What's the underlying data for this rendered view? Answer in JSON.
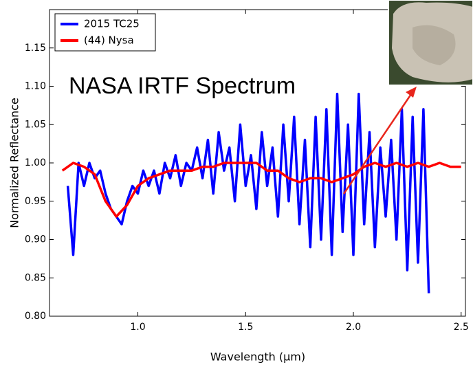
{
  "chart_data": {
    "type": "line",
    "annotation": "NASA IRTF Spectrum",
    "x_label": "Wavelength (μm)",
    "y_label": "Normalized Reflectance",
    "xlim": [
      0.59,
      2.52
    ],
    "ylim": [
      0.8,
      1.2
    ],
    "xticks": [
      {
        "value": 1,
        "label": "1.0"
      },
      1.5,
      {
        "value": 2,
        "label": "2.0"
      },
      2.5
    ],
    "yticks": [
      {
        "value": 0.8,
        "label": "0.80"
      },
      0.85,
      {
        "value": 0.9,
        "label": "0.90"
      },
      0.95,
      {
        "value": 1,
        "label": "1.00"
      },
      1.05,
      {
        "value": 1.1,
        "label": "1.10"
      },
      1.15
    ],
    "grid": false,
    "legend": "upper left",
    "series": [
      {
        "name": "2015 TC25",
        "color": "#0000ff",
        "x": [
          0.675,
          0.7,
          0.725,
          0.75,
          0.775,
          0.8,
          0.825,
          0.85,
          0.875,
          0.9,
          0.925,
          0.95,
          0.975,
          1.0,
          1.025,
          1.05,
          1.075,
          1.1,
          1.125,
          1.15,
          1.175,
          1.2,
          1.225,
          1.25,
          1.275,
          1.3,
          1.325,
          1.35,
          1.375,
          1.4,
          1.425,
          1.45,
          1.475,
          1.5,
          1.525,
          1.55,
          1.575,
          1.6,
          1.625,
          1.65,
          1.675,
          1.7,
          1.725,
          1.75,
          1.775,
          1.8,
          1.825,
          1.85,
          1.875,
          1.9,
          1.925,
          1.95,
          1.975,
          2.0,
          2.025,
          2.05,
          2.075,
          2.1,
          2.125,
          2.15,
          2.175,
          2.2,
          2.225,
          2.25,
          2.275,
          2.3,
          2.325,
          2.35
        ],
        "values": [
          0.97,
          0.88,
          1.0,
          0.97,
          1.0,
          0.98,
          0.99,
          0.96,
          0.94,
          0.93,
          0.92,
          0.95,
          0.97,
          0.96,
          0.99,
          0.97,
          0.99,
          0.96,
          1.0,
          0.98,
          1.01,
          0.97,
          1.0,
          0.99,
          1.02,
          0.98,
          1.03,
          0.96,
          1.04,
          0.99,
          1.02,
          0.95,
          1.05,
          0.97,
          1.01,
          0.94,
          1.04,
          0.97,
          1.02,
          0.93,
          1.05,
          0.95,
          1.06,
          0.92,
          1.03,
          0.89,
          1.06,
          0.9,
          1.07,
          0.88,
          1.09,
          0.91,
          1.05,
          0.88,
          1.09,
          0.92,
          1.04,
          0.89,
          1.02,
          0.93,
          1.03,
          0.9,
          1.07,
          0.86,
          1.06,
          0.87,
          1.07,
          0.83
        ]
      },
      {
        "name": "(44) Nysa",
        "color": "#ff0000",
        "x": [
          0.65,
          0.7,
          0.75,
          0.8,
          0.85,
          0.9,
          0.95,
          1.0,
          1.05,
          1.1,
          1.15,
          1.2,
          1.25,
          1.3,
          1.35,
          1.4,
          1.45,
          1.5,
          1.55,
          1.6,
          1.65,
          1.7,
          1.75,
          1.8,
          1.85,
          1.9,
          1.95,
          2.0,
          2.05,
          2.1,
          2.15,
          2.2,
          2.25,
          2.3,
          2.35,
          2.4,
          2.45,
          2.5
        ],
        "values": [
          0.99,
          1.0,
          0.995,
          0.985,
          0.95,
          0.93,
          0.945,
          0.97,
          0.98,
          0.985,
          0.99,
          0.99,
          0.99,
          0.995,
          0.995,
          1.0,
          1.0,
          1.0,
          1.0,
          0.99,
          0.99,
          0.98,
          0.975,
          0.98,
          0.98,
          0.975,
          0.98,
          0.985,
          0.995,
          1.0,
          0.995,
          1.0,
          0.995,
          1.0,
          0.995,
          1.0,
          0.995,
          0.995
        ]
      }
    ]
  }
}
